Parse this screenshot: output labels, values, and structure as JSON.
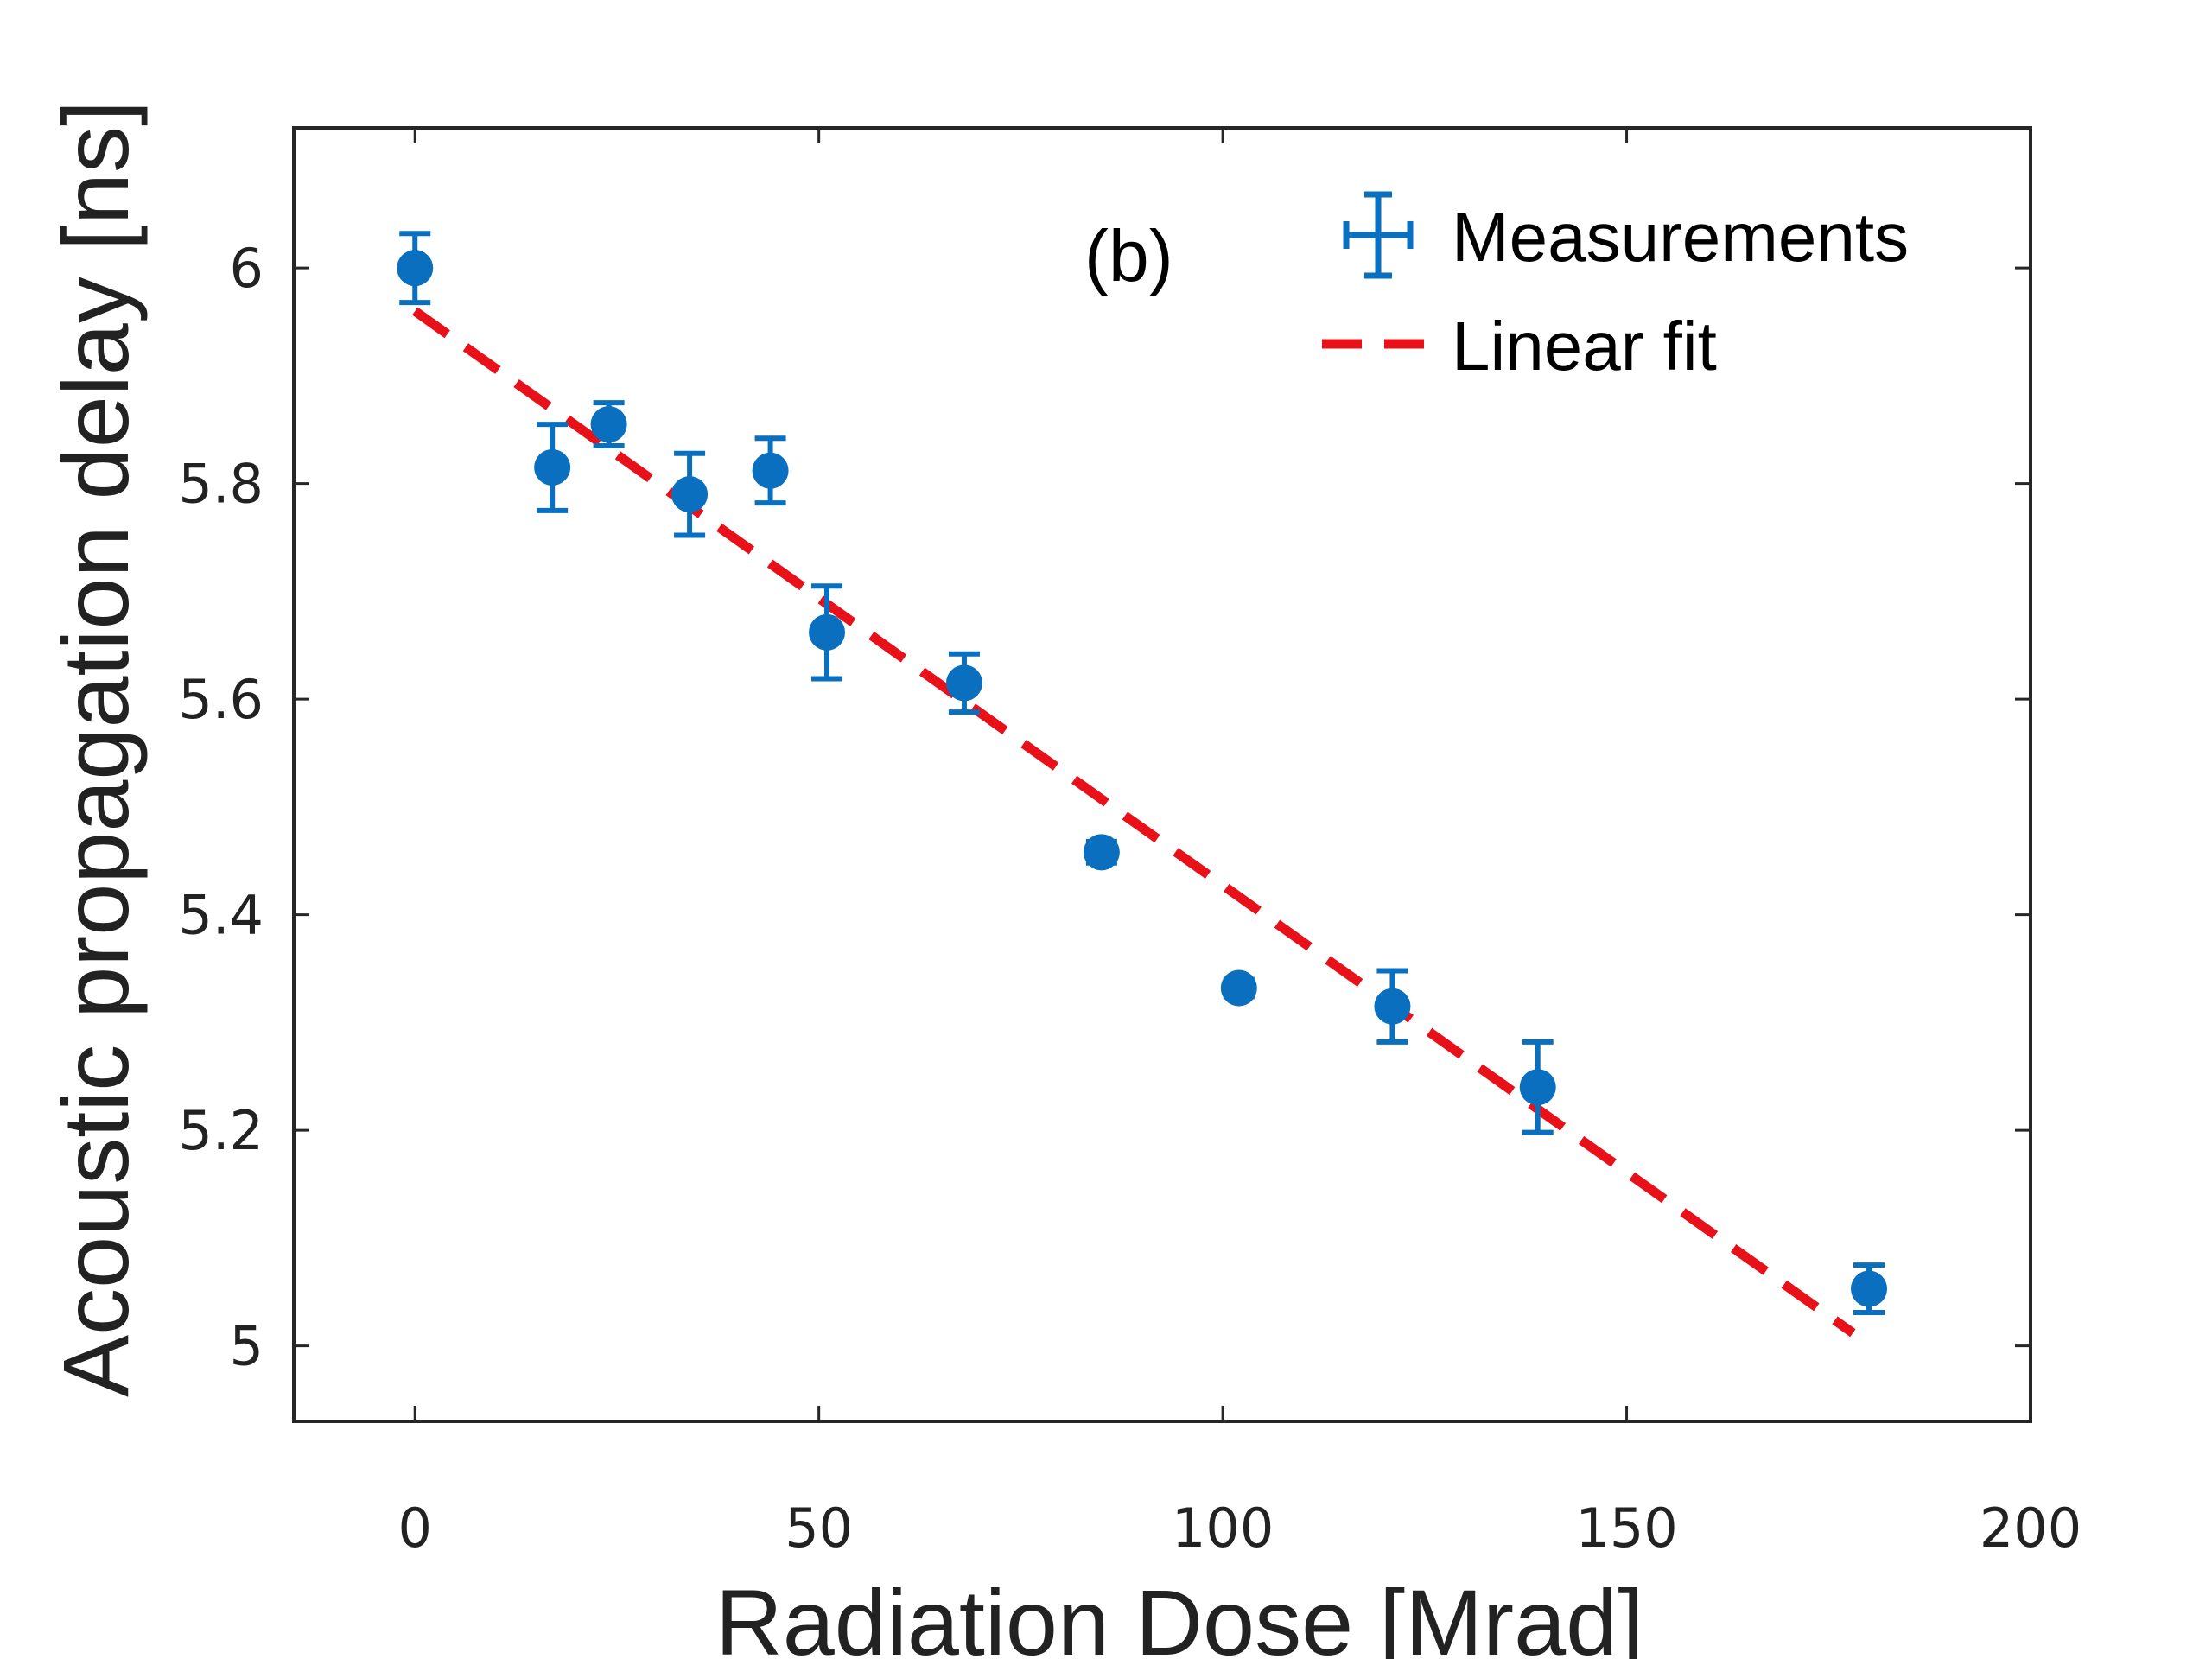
{
  "chart_data": {
    "type": "scatter",
    "title": "",
    "panel_label": "(b)",
    "xlabel": "Radiation Dose [Mrad]",
    "ylabel": "Acoustic propagation delay [ns]",
    "xlim": [
      -15,
      200
    ],
    "ylim": [
      4.93,
      6.13
    ],
    "xticks": [
      0,
      50,
      100,
      150,
      200
    ],
    "xtick_labels": [
      "0",
      "50",
      "100",
      "150",
      "200"
    ],
    "yticks": [
      5,
      5.2,
      5.4,
      5.6,
      5.8,
      6
    ],
    "ytick_labels": [
      "5",
      "5.2",
      "5.4",
      "5.6",
      "5.8",
      "6"
    ],
    "grid": false,
    "legend_position": "top-right",
    "series": [
      {
        "name": "Measurements",
        "kind": "errorbar",
        "color": "#0a6fbf",
        "x": [
          0,
          17,
          24,
          34,
          44,
          51,
          68,
          85,
          102,
          121,
          139,
          180
        ],
        "y": [
          6.0,
          5.815,
          5.855,
          5.79,
          5.812,
          5.662,
          5.615,
          5.458,
          5.332,
          5.315,
          5.24,
          5.053
        ],
        "xerr": [
          0,
          0,
          0,
          0,
          0,
          0,
          0,
          0,
          0,
          0,
          0,
          0
        ],
        "yerr": [
          0.032,
          0.04,
          0.02,
          0.038,
          0.03,
          0.043,
          0.027,
          0.01,
          0.008,
          0.033,
          0.042,
          0.022
        ]
      },
      {
        "name": "Linear fit",
        "kind": "line",
        "color": "#e8111a",
        "dash": "dashed",
        "x": [
          0,
          178
        ],
        "y": [
          5.96,
          5.012
        ]
      }
    ]
  }
}
